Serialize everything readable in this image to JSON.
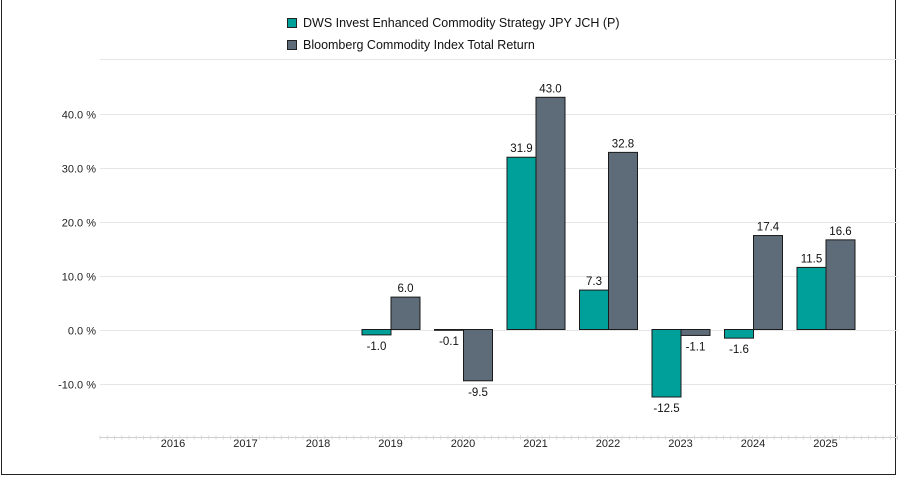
{
  "chart_data": {
    "type": "bar",
    "categories": [
      "2016",
      "2017",
      "2018",
      "2019",
      "2020",
      "2021",
      "2022",
      "2023",
      "2024",
      "2025"
    ],
    "series": [
      {
        "name": "DWS Invest Enhanced Commodity Strategy JPY JCH (P)",
        "color": "#00a09a",
        "values": [
          null,
          null,
          null,
          -1.0,
          -0.1,
          31.9,
          7.3,
          -12.5,
          -1.6,
          11.5
        ]
      },
      {
        "name": "Bloomberg Commodity Index Total Return",
        "color": "#5e6b78",
        "values": [
          null,
          null,
          null,
          6.0,
          -9.5,
          43.0,
          32.8,
          -1.1,
          17.4,
          16.6
        ]
      }
    ],
    "yticks": [
      -10,
      0,
      10,
      20,
      30,
      40
    ],
    "ytick_labels": [
      "-10.0 %",
      "0.0 %",
      "10.0 %",
      "20.0 %",
      "30.0 %",
      "40.0 %"
    ],
    "ylim": [
      -20,
      50
    ],
    "legend_position": "top-center",
    "grid": true
  }
}
